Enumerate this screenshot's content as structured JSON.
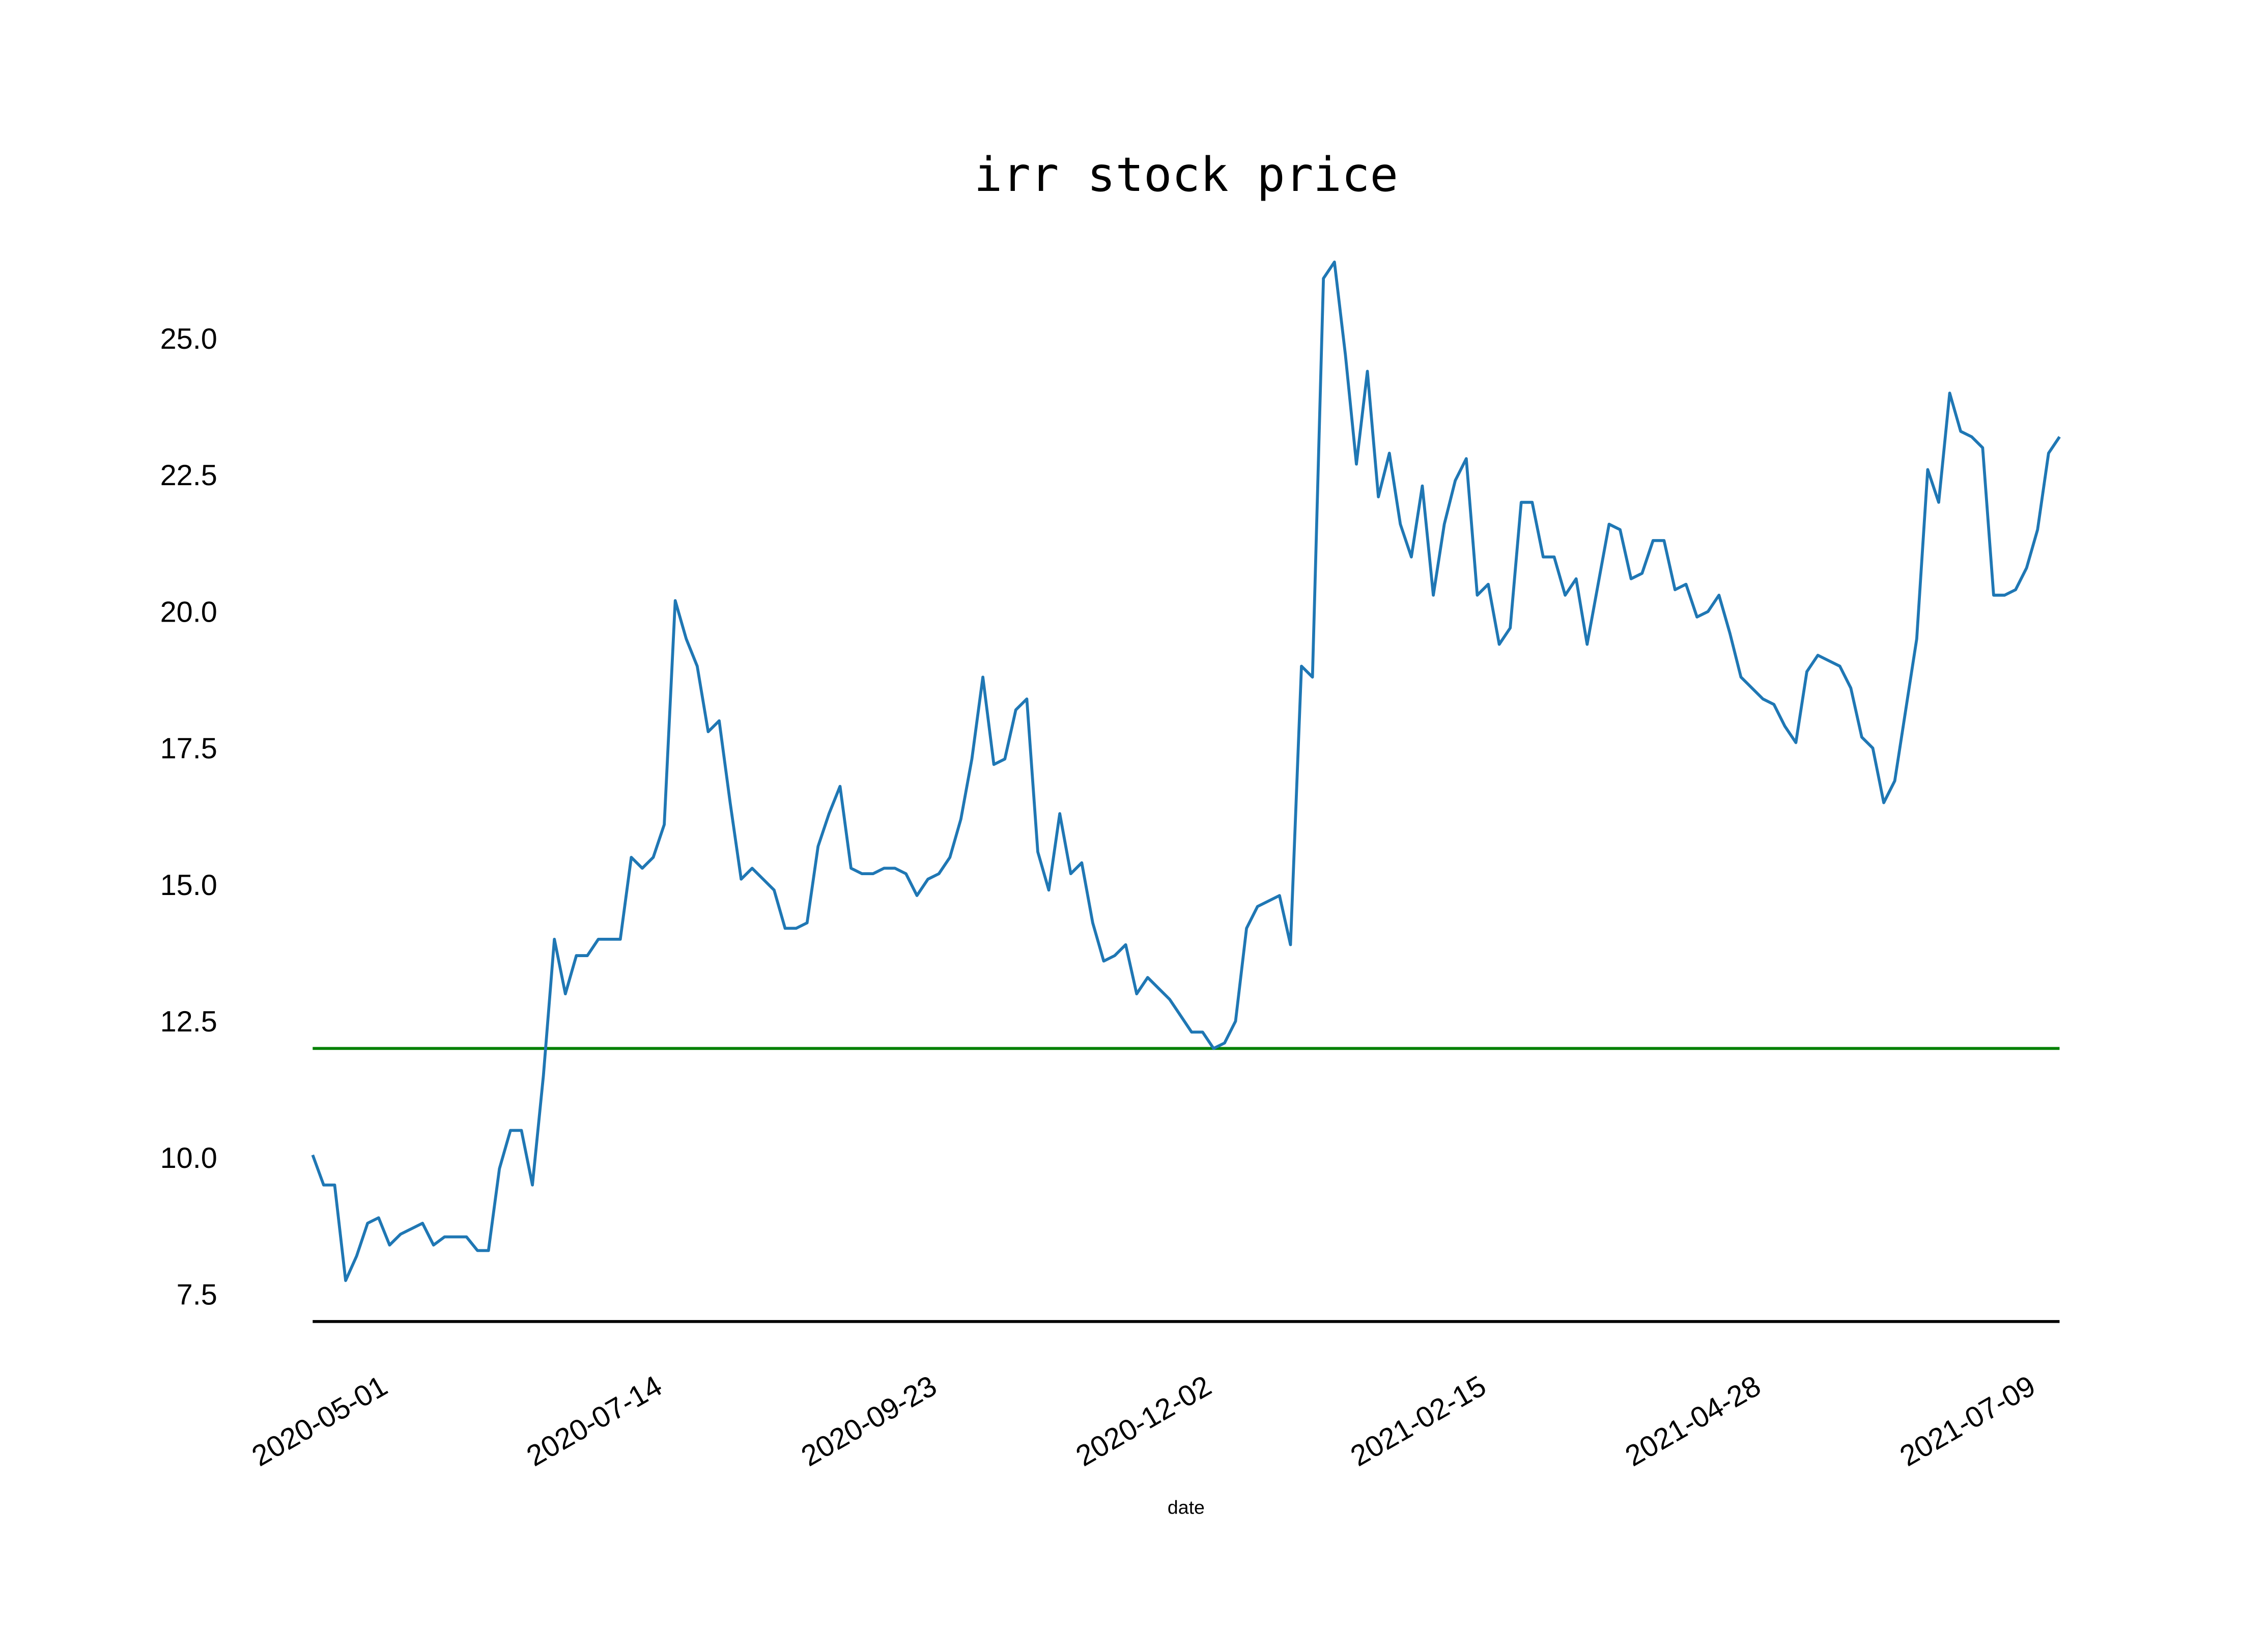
{
  "chart_data": {
    "type": "line",
    "title": "irr stock price",
    "xlabel": "date",
    "categories": [
      null,
      null,
      null,
      null,
      null,
      null,
      null,
      "2020-05-01",
      null,
      null,
      null,
      null,
      null,
      null,
      null,
      null,
      null,
      null,
      null,
      null,
      null,
      null,
      null,
      null,
      null,
      null,
      null,
      null,
      null,
      null,
      null,
      null,
      "2020-07-14",
      null,
      null,
      null,
      null,
      null,
      null,
      null,
      null,
      null,
      null,
      null,
      null,
      null,
      null,
      null,
      null,
      null,
      null,
      null,
      null,
      null,
      null,
      null,
      null,
      "2020-09-23",
      null,
      null,
      null,
      null,
      null,
      null,
      null,
      null,
      null,
      null,
      null,
      null,
      null,
      null,
      null,
      null,
      null,
      null,
      null,
      null,
      null,
      null,
      null,
      null,
      "2020-12-02",
      null,
      null,
      null,
      null,
      null,
      null,
      null,
      null,
      null,
      null,
      null,
      null,
      null,
      null,
      null,
      null,
      null,
      null,
      null,
      null,
      null,
      null,
      null,
      null,
      "2021-02-15",
      null,
      null,
      null,
      null,
      null,
      null,
      null,
      null,
      null,
      null,
      null,
      null,
      null,
      null,
      null,
      null,
      null,
      null,
      null,
      null,
      null,
      null,
      null,
      null,
      "2021-04-28",
      null,
      null,
      null,
      null,
      null,
      null,
      null,
      null,
      null,
      null,
      null,
      null,
      null,
      null,
      null,
      null,
      null,
      null,
      null,
      null,
      null,
      null,
      null,
      null,
      "2021-07-09",
      null,
      null
    ],
    "series": [
      {
        "color": "#1f77b4",
        "values": [
          10.05,
          9.5,
          9.5,
          7.75,
          8.2,
          8.8,
          8.9,
          8.4,
          8.6,
          8.7,
          8.8,
          8.4,
          8.55,
          8.55,
          8.55,
          8.3,
          8.3,
          9.8,
          10.5,
          10.5,
          9.5,
          11.5,
          14.0,
          13.0,
          13.7,
          13.7,
          14.0,
          14.0,
          14.0,
          15.5,
          15.3,
          15.5,
          16.1,
          20.2,
          19.5,
          19.0,
          17.8,
          18.0,
          16.5,
          15.1,
          15.3,
          15.1,
          14.9,
          14.2,
          14.2,
          14.3,
          15.7,
          16.3,
          16.8,
          15.3,
          15.2,
          15.2,
          15.3,
          15.3,
          15.2,
          14.8,
          15.1,
          15.2,
          15.5,
          16.2,
          17.3,
          18.8,
          17.2,
          17.3,
          18.2,
          18.4,
          15.6,
          14.9,
          16.3,
          15.2,
          15.4,
          14.3,
          13.6,
          13.7,
          13.9,
          13.0,
          13.3,
          13.1,
          12.9,
          12.6,
          12.3,
          12.3,
          12.0,
          12.1,
          12.5,
          14.2,
          14.6,
          14.7,
          14.8,
          13.9,
          19.0,
          18.8,
          26.1,
          26.4,
          24.7,
          22.7,
          24.4,
          22.1,
          22.9,
          21.6,
          21.0,
          22.3,
          20.3,
          21.6,
          22.4,
          22.8,
          20.3,
          20.5,
          19.4,
          19.7,
          22.0,
          22.0,
          21.0,
          21.0,
          20.3,
          20.6,
          19.4,
          20.5,
          21.6,
          21.5,
          20.6,
          20.7,
          21.3,
          21.3,
          20.4,
          20.5,
          19.9,
          20.0,
          20.3,
          19.6,
          18.8,
          18.6,
          18.4,
          18.3,
          17.9,
          17.6,
          18.9,
          19.2,
          19.1,
          19.0,
          18.6,
          17.7,
          17.5,
          16.5,
          16.9,
          18.2,
          19.5,
          22.6,
          22.0,
          24.0,
          23.3,
          23.2,
          23.0,
          20.3,
          20.3,
          20.4,
          20.8,
          21.5,
          22.9,
          23.2
        ]
      }
    ],
    "hlines": [
      {
        "value": 12,
        "color": "green"
      }
    ],
    "ylim": [
      7.0,
      26.6
    ],
    "yticks": [
      7.5,
      {
        "value": 10,
        "label": "10.0"
      },
      12.5,
      {
        "value": 15,
        "label": "15.0"
      },
      17.5,
      {
        "value": 20,
        "label": "20.0"
      },
      22.5,
      {
        "value": 25,
        "label": "25.0"
      }
    ],
    "grid": false
  }
}
